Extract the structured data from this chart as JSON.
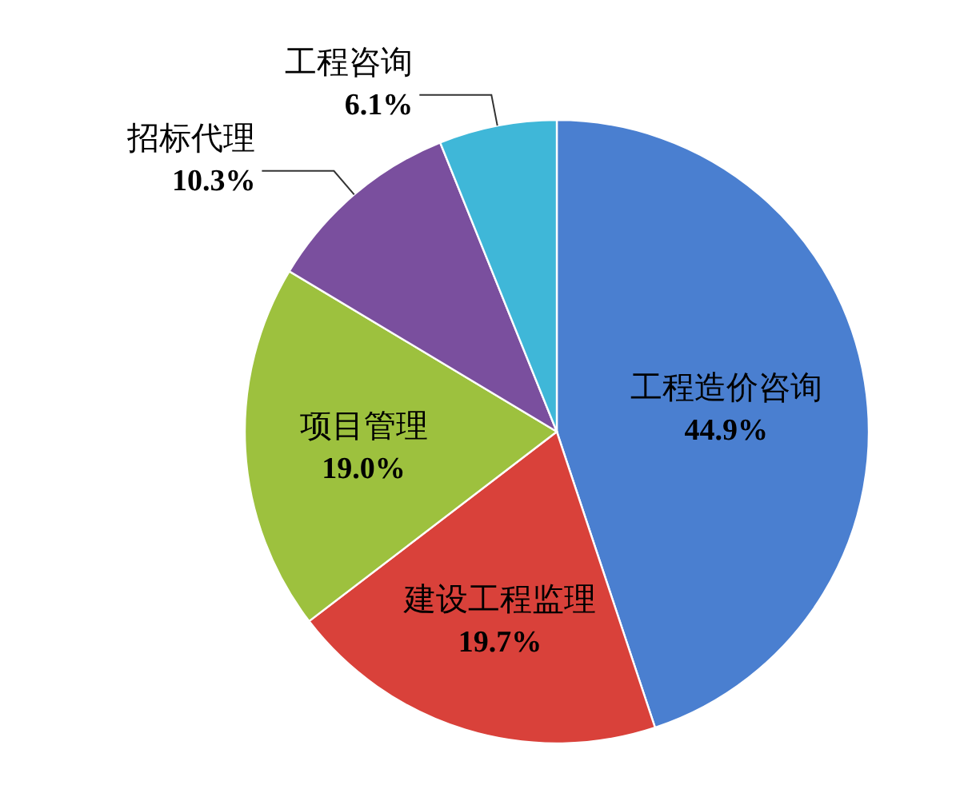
{
  "chart_data": {
    "type": "pie",
    "categories": [
      "工程造价咨询",
      "建设工程监理",
      "项目管理",
      "招标代理",
      "工程咨询"
    ],
    "values": [
      44.9,
      19.7,
      19.0,
      10.3,
      6.1
    ],
    "value_labels": [
      "44.9%",
      "19.7%",
      "19.0%",
      "10.3%",
      "6.1%"
    ],
    "colors": [
      "#4a7fd0",
      "#d9413a",
      "#9dc13e",
      "#7a4f9e",
      "#3fb7d8"
    ]
  }
}
